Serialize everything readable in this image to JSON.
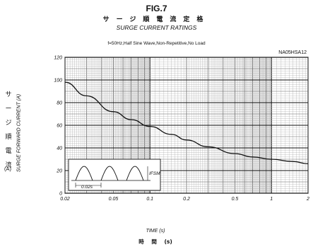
{
  "header": {
    "fig_label": "FIG.7",
    "title_ja": "サージ順電流定格",
    "title_en": "SURGE CURRENT RATINGS",
    "conditions": "f=50Hz,Half Sine Wave,Non-Repetitive,No Load",
    "part_number": "NA05HSA12"
  },
  "axes": {
    "ylabel_ja": [
      "サ",
      "ー",
      "ジ",
      "順",
      "電",
      "流"
    ],
    "ylabel_ja_unit": "(A)",
    "ylabel_en": "SURGE FORWARD CURRENT (A)",
    "xlabel_en": "TIME (s)",
    "xlabel_ja": "時 間 (s)"
  },
  "inset": {
    "period_label": "0.02s",
    "current_label": "IFSM"
  },
  "chart_data": {
    "type": "line",
    "x_scale": "log",
    "xlim": [
      0.02,
      2
    ],
    "ylim": [
      0,
      120
    ],
    "x_ticks": [
      0.02,
      0.05,
      0.1,
      0.2,
      0.5,
      1,
      2
    ],
    "x_tick_labels": [
      "0.02",
      "0.05",
      "0.1",
      "0.2",
      "0.5",
      "1",
      "2"
    ],
    "y_ticks": [
      0,
      20,
      40,
      60,
      80,
      100,
      120
    ],
    "y_tick_labels": [
      "0",
      "20",
      "40",
      "60",
      "80",
      "100",
      "120"
    ],
    "grid": true,
    "series": [
      {
        "x": [
          0.02,
          0.03,
          0.05,
          0.07,
          0.1,
          0.15,
          0.2,
          0.3,
          0.5,
          0.7,
          1,
          1.5,
          2
        ],
        "values": [
          98,
          86,
          72,
          65,
          59,
          52,
          47,
          41,
          35,
          32,
          30,
          28,
          26
        ]
      }
    ]
  }
}
